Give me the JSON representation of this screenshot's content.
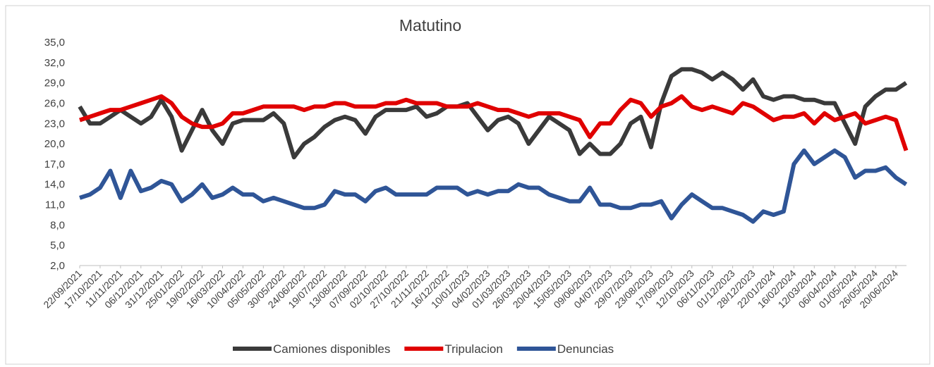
{
  "chart_data": {
    "type": "line",
    "title": "Matutino",
    "categories": [
      "22/09/2021",
      null,
      "17/10/2021",
      null,
      "11/11/2021",
      null,
      "06/12/2021",
      null,
      "31/12/2021",
      null,
      "25/01/2022",
      null,
      "19/02/2022",
      null,
      "16/03/2022",
      null,
      "10/04/2022",
      null,
      "05/05/2022",
      null,
      "30/05/2022",
      null,
      "24/06/2022",
      null,
      "19/07/2022",
      null,
      "13/08/2022",
      null,
      "07/09/2022",
      null,
      "02/10/2022",
      null,
      "27/10/2022",
      null,
      "21/11/2022",
      null,
      "16/12/2022",
      null,
      "10/01/2023",
      null,
      "04/02/2023",
      null,
      "01/03/2023",
      null,
      "26/03/2023",
      null,
      "20/04/2023",
      null,
      "15/05/2023",
      null,
      "09/06/2023",
      null,
      "04/07/2023",
      null,
      "29/07/2023",
      null,
      "23/08/2023",
      null,
      "17/09/2023",
      null,
      "12/10/2023",
      null,
      "06/11/2023",
      null,
      "01/12/2023",
      null,
      "28/12/2023",
      null,
      "22/01/2024",
      null,
      "16/02/2024",
      null,
      "12/03/2024",
      null,
      "06/04/2024",
      null,
      "01/05/2024",
      null,
      "26/05/2024",
      null,
      "20/06/2024",
      null
    ],
    "series": [
      {
        "name": "Camiones disponibles",
        "color": "#3a3a3a",
        "values": [
          25.5,
          23,
          23,
          24,
          25,
          24,
          23,
          24,
          26.5,
          24,
          19,
          22,
          25,
          22,
          20,
          23,
          23.5,
          23.5,
          23.5,
          24.5,
          23,
          18,
          20,
          21,
          22.5,
          23.5,
          24,
          23.5,
          21.5,
          24,
          25,
          25,
          25,
          25.5,
          24,
          24.5,
          25.5,
          25.5,
          26,
          24,
          22,
          23.5,
          24,
          23,
          20,
          22,
          24,
          23,
          22,
          18.5,
          20,
          18.5,
          18.5,
          20,
          23,
          24,
          19.5,
          26,
          30,
          31,
          31,
          30.5,
          29.5,
          30.5,
          29.5,
          28,
          29.5,
          27,
          26.5,
          27,
          27,
          26.5,
          26.5,
          26,
          26,
          23,
          20,
          25.5,
          27,
          28,
          28,
          29
        ]
      },
      {
        "name": "Tripulacion",
        "color": "#e00000",
        "values": [
          23.5,
          24,
          24.5,
          25,
          25,
          25.5,
          26,
          26.5,
          27,
          26,
          24,
          23,
          22.5,
          22.5,
          23,
          24.5,
          24.5,
          25,
          25.5,
          25.5,
          25.5,
          25.5,
          25,
          25.5,
          25.5,
          26,
          26,
          25.5,
          25.5,
          25.5,
          26,
          26,
          26.5,
          26,
          26,
          26,
          25.5,
          25.5,
          25.5,
          26,
          25.5,
          25,
          25,
          24.5,
          24,
          24.5,
          24.5,
          24.5,
          24,
          23.5,
          21,
          23,
          23,
          25,
          26.5,
          26,
          24,
          25.5,
          26,
          27,
          25.5,
          25,
          25.5,
          25,
          24.5,
          26,
          25.5,
          24.5,
          23.5,
          24,
          24,
          24.5,
          23,
          24.5,
          23.5,
          24,
          24.5,
          23,
          23.5,
          24,
          23.5,
          19
        ]
      },
      {
        "name": "Denuncias",
        "color": "#2f5597",
        "values": [
          12,
          12.5,
          13.5,
          16,
          12,
          16,
          13,
          13.5,
          14.5,
          14,
          11.5,
          12.5,
          14,
          12,
          12.5,
          13.5,
          12.5,
          12.5,
          11.5,
          12,
          11.5,
          11,
          10.5,
          10.5,
          11,
          13,
          12.5,
          12.5,
          11.5,
          13,
          13.5,
          12.5,
          12.5,
          12.5,
          12.5,
          13.5,
          13.5,
          13.5,
          12.5,
          13,
          12.5,
          13,
          13,
          14,
          13.5,
          13.5,
          12.5,
          12,
          11.5,
          11.5,
          13.5,
          11,
          11,
          10.5,
          10.5,
          11,
          11,
          11.5,
          9,
          11,
          12.5,
          11.5,
          10.5,
          10.5,
          10,
          9.5,
          8.5,
          10,
          9.5,
          10,
          17,
          19,
          17,
          18,
          19,
          18,
          15,
          16,
          16,
          16.5,
          15,
          14
        ]
      }
    ],
    "ylim": [
      2,
      35
    ],
    "yticks": [
      {
        "value": 2,
        "label": "2,0"
      },
      {
        "value": 5,
        "label": "5,0"
      },
      {
        "value": 8,
        "label": "8,0"
      },
      {
        "value": 11,
        "label": "11,0"
      },
      {
        "value": 14,
        "label": "14,0"
      },
      {
        "value": 17,
        "label": "17,0"
      },
      {
        "value": 20,
        "label": "20,0"
      },
      {
        "value": 23,
        "label": "23,0"
      },
      {
        "value": 26,
        "label": "26,0"
      },
      {
        "value": 29,
        "label": "29,0"
      },
      {
        "value": 32,
        "label": "32,0"
      },
      {
        "value": 35,
        "label": "35,0"
      }
    ],
    "grid": false,
    "legend": "bottom"
  }
}
